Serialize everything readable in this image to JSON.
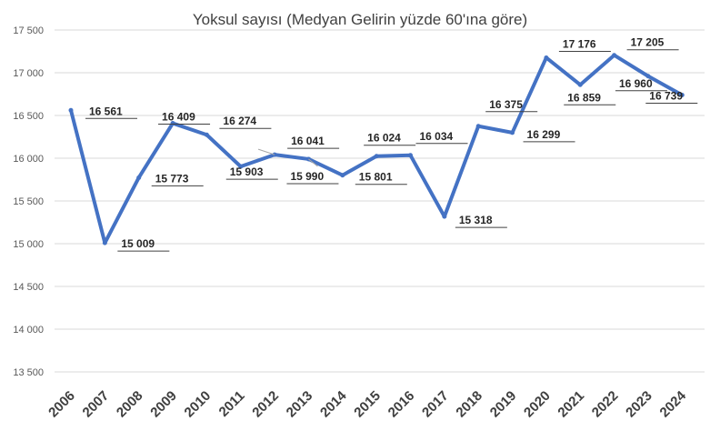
{
  "chart_data": {
    "type": "line",
    "title": "Yoksul sayısı (Medyan Gelirin yüzde 60'ına göre)",
    "xlabel": "",
    "ylabel": "",
    "ylim": [
      13500,
      17500
    ],
    "yticks": [
      "13 500",
      "14 000",
      "14 500",
      "15 000",
      "15 500",
      "16 000",
      "16 500",
      "17 000",
      "17 500"
    ],
    "grid": true,
    "categories": [
      "2006",
      "2007",
      "2008",
      "2009",
      "2010",
      "2011",
      "2012",
      "2013",
      "2014",
      "2015",
      "2016",
      "2017",
      "2018",
      "2019",
      "2020",
      "2021",
      "2022",
      "2023",
      "2024"
    ],
    "series": [
      {
        "color": "#4472c4",
        "values": [
          16561,
          15009,
          15773,
          16409,
          16274,
          15903,
          16041,
          15990,
          15801,
          16024,
          16034,
          15318,
          16375,
          16299,
          17176,
          16859,
          17205,
          16960,
          16739
        ],
        "labels": [
          "16 561",
          "15 009",
          "15 773",
          "16 409",
          "16 274",
          "15 903",
          "16 041",
          "15 990",
          "15 801",
          "16 024",
          "16 034",
          "15 318",
          "16 375",
          "16 299",
          "17 176",
          "16 859",
          "17 205",
          "16 960",
          "16 739"
        ]
      }
    ]
  }
}
